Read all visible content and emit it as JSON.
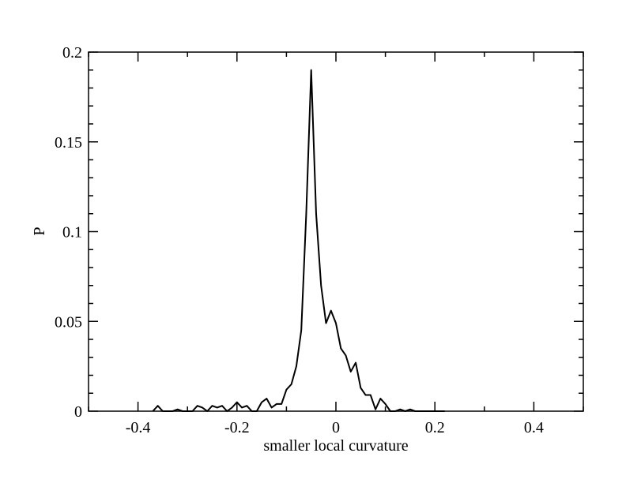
{
  "chart_data": {
    "type": "line",
    "title": "",
    "xlabel": "smaller local curvature",
    "ylabel": "P",
    "xlim": [
      -0.5,
      0.5
    ],
    "ylim": [
      0,
      0.2
    ],
    "x_ticks": [
      -0.4,
      -0.2,
      0,
      0.2,
      0.4
    ],
    "x_tick_labels": [
      "-0.4",
      "-0.2",
      "0",
      "0.2",
      "0.4"
    ],
    "y_ticks": [
      0,
      0.05,
      0.1,
      0.15,
      0.2
    ],
    "y_tick_labels": [
      "0",
      "0.05",
      "0.1",
      "0.15",
      "0.2"
    ],
    "grid": false,
    "series": [
      {
        "color": "#000000",
        "x": [
          -0.37,
          -0.36,
          -0.35,
          -0.34,
          -0.33,
          -0.32,
          -0.31,
          -0.3,
          -0.29,
          -0.28,
          -0.27,
          -0.26,
          -0.25,
          -0.24,
          -0.23,
          -0.22,
          -0.21,
          -0.2,
          -0.19,
          -0.18,
          -0.17,
          -0.16,
          -0.15,
          -0.14,
          -0.13,
          -0.12,
          -0.11,
          -0.1,
          -0.09,
          -0.08,
          -0.07,
          -0.06,
          -0.05,
          -0.04,
          -0.03,
          -0.02,
          -0.01,
          0.0,
          0.01,
          0.02,
          0.03,
          0.04,
          0.05,
          0.06,
          0.07,
          0.08,
          0.09,
          0.1,
          0.11,
          0.12,
          0.13,
          0.14,
          0.15,
          0.16,
          0.17,
          0.18,
          0.19,
          0.2,
          0.21,
          0.22
        ],
        "y": [
          0,
          0.003,
          0,
          0,
          0,
          0.001,
          0,
          0,
          0,
          0.003,
          0.002,
          0,
          0.003,
          0.002,
          0.003,
          0,
          0.002,
          0.005,
          0.002,
          0.003,
          0,
          0,
          0.005,
          0.007,
          0.002,
          0.004,
          0.004,
          0.012,
          0.015,
          0.025,
          0.045,
          0.11,
          0.19,
          0.11,
          0.07,
          0.049,
          0.056,
          0.049,
          0.035,
          0.031,
          0.022,
          0.027,
          0.013,
          0.009,
          0.009,
          0.001,
          0.007,
          0.004,
          0,
          0,
          0.001,
          0,
          0.001,
          0,
          0,
          0,
          0,
          0,
          0,
          0
        ]
      }
    ]
  }
}
